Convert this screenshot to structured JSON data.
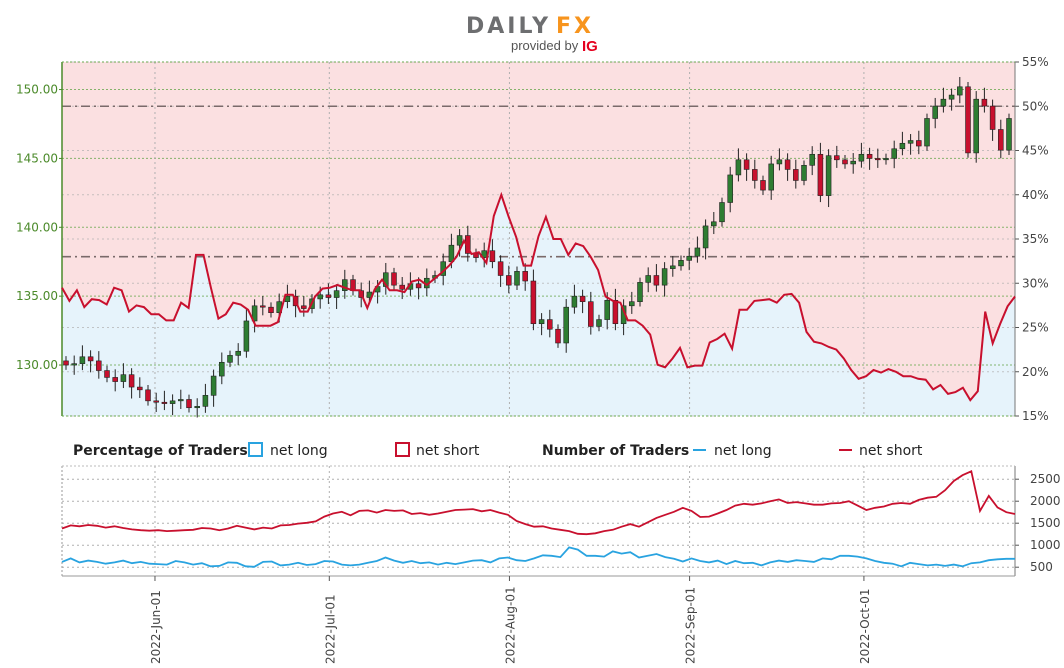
{
  "brand": {
    "name_part1": "DAILY",
    "name_part2": "FX",
    "provided_by": "provided by",
    "ig": "IG",
    "colors": {
      "grey": "#6d6e70",
      "orange": "#f7941d",
      "ig_red": "#e5001e"
    }
  },
  "colors": {
    "candle_up": "#2e7d32",
    "candle_down": "#c8102e",
    "net_short": "#c8102e",
    "net_long": "#29a3e0",
    "bg_short": "#fbe0e1",
    "bg_long": "#e6f3fb",
    "left_axis": "#4b8a2a"
  },
  "legend": {
    "pct_title": "Percentage of Traders",
    "pct_long": "net long",
    "pct_short": "net short",
    "num_title": "Number of Traders",
    "num_long": "net long",
    "num_short": "net short"
  },
  "x_labels": [
    "2022-Jun-01",
    "2022-Jul-01",
    "2022-Aug-01",
    "2022-Sep-01",
    "2022-Oct-01"
  ],
  "chart_data": [
    {
      "type": "candlestick",
      "date_range": [
        "2022-05-16",
        "2022-10-27"
      ],
      "y_left_ticks": [
        "130.00",
        "135.00",
        "140.00",
        "145.00",
        "150.00"
      ],
      "y_right_ticks": [
        "15%",
        "20%",
        "25%",
        "30%",
        "35%",
        "40%",
        "45%",
        "50%",
        "55%"
      ],
      "ylim_price": [
        126.3,
        152.0
      ],
      "ylim_pct": [
        15,
        55
      ],
      "reference_lines_pct": [
        50,
        33
      ],
      "closes": [
        130.0,
        130.1,
        130.6,
        130.3,
        129.6,
        129.1,
        128.8,
        129.3,
        128.4,
        128.2,
        127.4,
        127.3,
        127.2,
        127.4,
        127.5,
        126.9,
        127.0,
        127.8,
        129.2,
        130.2,
        130.7,
        131.0,
        133.2,
        134.3,
        134.2,
        133.8,
        134.6,
        135.0,
        134.3,
        134.1,
        134.8,
        135.1,
        134.9,
        135.4,
        136.2,
        135.4,
        134.9,
        135.3,
        135.7,
        136.7,
        135.8,
        135.5,
        135.9,
        135.6,
        136.3,
        136.5,
        137.5,
        138.7,
        139.4,
        138.1,
        137.8,
        138.3,
        137.5,
        136.5,
        135.8,
        136.8,
        136.1,
        133.0,
        133.3,
        132.6,
        131.6,
        134.2,
        135.0,
        134.6,
        132.8,
        133.3,
        134.7,
        133.0,
        134.3,
        134.6,
        136.0,
        136.5,
        135.8,
        137.0,
        137.2,
        137.6,
        137.9,
        138.5,
        140.1,
        140.4,
        141.8,
        143.8,
        144.9,
        144.2,
        143.4,
        142.7,
        144.6,
        144.9,
        144.2,
        143.4,
        144.5,
        145.3,
        142.3,
        145.2,
        144.9,
        144.6,
        144.8,
        145.3,
        145.0,
        144.9,
        145.0,
        145.7,
        146.1,
        146.3,
        145.9,
        147.9,
        148.8,
        149.3,
        149.6,
        150.2,
        145.4,
        149.3,
        148.8,
        147.1,
        145.6,
        147.9
      ],
      "pct_net_short": [
        29.5,
        28.0,
        29.2,
        27.3,
        28.2,
        28.1,
        27.6,
        29.5,
        29.2,
        26.8,
        27.5,
        27.3,
        26.5,
        26.5,
        25.8,
        25.8,
        27.8,
        27.2,
        33.2,
        33.2,
        29.5,
        26.0,
        26.5,
        27.8,
        27.6,
        27.0,
        25.2,
        25.2,
        25.2,
        25.6,
        28.7,
        28.7,
        26.8,
        26.8,
        28.5,
        29.4,
        29.5,
        29.8,
        29.5,
        29.2,
        29.2,
        27.2,
        29.3,
        30.4,
        29.2,
        29.2,
        29.0,
        30.2,
        30.4,
        29.8,
        30.5,
        31.2,
        32.0,
        33.0,
        34.8,
        33.3,
        33.5,
        32.3,
        37.6,
        40.0,
        37.5,
        35.2,
        32.0,
        32.0,
        35.3,
        37.5,
        35.0,
        35.0,
        33.2,
        34.5,
        34.2,
        33.0,
        31.5,
        28.5,
        28.0,
        27.8,
        25.8,
        25.8,
        25.2,
        24.2,
        20.8,
        20.5,
        21.5,
        22.7,
        20.5,
        20.7,
        20.7,
        23.3,
        23.7,
        24.3,
        22.6,
        27.0,
        27.0,
        28.0,
        28.1,
        28.2,
        27.8,
        28.7,
        28.8,
        27.8,
        24.5,
        23.4,
        23.2,
        22.8,
        22.5,
        21.5,
        20.2,
        19.2,
        19.5,
        20.2,
        19.9,
        20.3,
        20.0,
        19.5,
        19.5,
        19.2,
        19.1,
        18.0,
        18.5,
        17.5,
        17.7,
        18.2,
        16.8,
        17.8,
        26.8,
        23.2,
        25.4,
        27.4,
        28.5
      ],
      "candles": "daily OHLC series drawn from closes"
    },
    {
      "type": "line",
      "y_ticks": [
        "500",
        "1000",
        "1500",
        "2000",
        "2500"
      ],
      "ylim": [
        300,
        2800
      ],
      "series": [
        {
          "name": "net long",
          "values": [
            620,
            700,
            610,
            650,
            620,
            580,
            610,
            650,
            590,
            620,
            580,
            570,
            560,
            640,
            610,
            560,
            590,
            520,
            530,
            610,
            600,
            520,
            510,
            620,
            630,
            540,
            560,
            600,
            550,
            570,
            640,
            630,
            560,
            540,
            560,
            600,
            640,
            720,
            650,
            600,
            640,
            590,
            610,
            560,
            600,
            570,
            610,
            650,
            660,
            610,
            700,
            720,
            660,
            640,
            700,
            770,
            760,
            730,
            950,
            900,
            760,
            760,
            740,
            860,
            810,
            840,
            720,
            760,
            800,
            730,
            690,
            630,
            700,
            640,
            610,
            650,
            570,
            640,
            590,
            600,
            540,
            610,
            650,
            620,
            660,
            640,
            620,
            700,
            680,
            760,
            760,
            740,
            700,
            640,
            600,
            580,
            520,
            600,
            570,
            540,
            560,
            530,
            560,
            520,
            590,
            610,
            660,
            680,
            690,
            690
          ]
        },
        {
          "name": "net short",
          "values": [
            1380,
            1450,
            1430,
            1460,
            1440,
            1400,
            1430,
            1390,
            1360,
            1340,
            1330,
            1340,
            1320,
            1330,
            1340,
            1350,
            1390,
            1380,
            1340,
            1380,
            1440,
            1400,
            1360,
            1400,
            1380,
            1450,
            1460,
            1490,
            1510,
            1540,
            1650,
            1720,
            1760,
            1680,
            1780,
            1790,
            1740,
            1800,
            1780,
            1790,
            1710,
            1730,
            1690,
            1720,
            1760,
            1800,
            1810,
            1820,
            1770,
            1800,
            1740,
            1690,
            1550,
            1480,
            1420,
            1430,
            1380,
            1350,
            1320,
            1260,
            1250,
            1270,
            1320,
            1350,
            1420,
            1480,
            1420,
            1520,
            1620,
            1690,
            1760,
            1850,
            1780,
            1640,
            1650,
            1720,
            1800,
            1900,
            1940,
            1920,
            1950,
            2000,
            2040,
            1960,
            1980,
            1950,
            1920,
            1920,
            1950,
            1960,
            2000,
            1900,
            1800,
            1850,
            1880,
            1940,
            1960,
            1940,
            2030,
            2080,
            2100,
            2250,
            2460,
            2590,
            2680,
            1780,
            2120,
            1860,
            1750,
            1710
          ]
        }
      ]
    }
  ]
}
